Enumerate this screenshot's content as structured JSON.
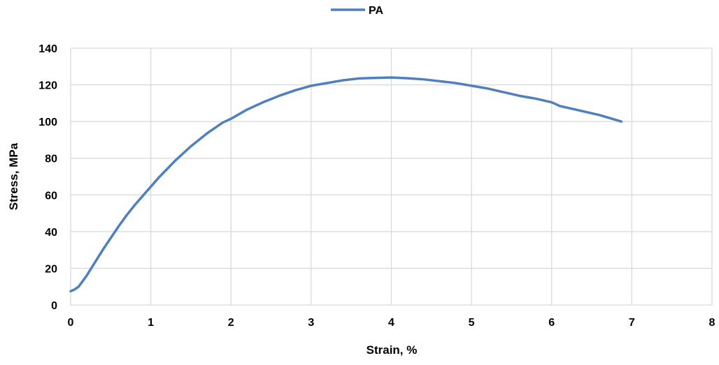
{
  "chart_data": {
    "type": "line",
    "title": "",
    "xlabel": "Strain, %",
    "ylabel": "Stress, MPa",
    "xlim": [
      0,
      8
    ],
    "ylim": [
      0,
      140
    ],
    "xticks": [
      0,
      1,
      2,
      3,
      4,
      5,
      6,
      7,
      8
    ],
    "yticks": [
      0,
      20,
      40,
      60,
      80,
      100,
      120,
      140
    ],
    "grid": true,
    "legend_position": "top-center",
    "series": [
      {
        "name": "PA",
        "color": "#4f7fbf",
        "x": [
          0,
          0.05,
          0.1,
          0.15,
          0.2,
          0.3,
          0.4,
          0.5,
          0.6,
          0.7,
          0.8,
          0.9,
          1.0,
          1.1,
          1.2,
          1.3,
          1.4,
          1.5,
          1.6,
          1.7,
          1.8,
          1.9,
          2.0,
          2.1,
          2.2,
          2.4,
          2.6,
          2.8,
          3.0,
          3.2,
          3.4,
          3.6,
          3.8,
          4.0,
          4.2,
          4.4,
          4.6,
          4.8,
          5.0,
          5.2,
          5.4,
          5.6,
          5.8,
          6.0,
          6.1,
          6.2,
          6.4,
          6.6,
          6.87
        ],
        "y": [
          7.5,
          8.5,
          10,
          13,
          16,
          23,
          30,
          36.5,
          43,
          49,
          54.5,
          59.5,
          64.5,
          69.5,
          74,
          78.5,
          82.5,
          86.5,
          90,
          93.5,
          96.5,
          99.5,
          101.5,
          104,
          106.5,
          110.5,
          114,
          117,
          119.5,
          121,
          122.5,
          123.5,
          123.8,
          124,
          123.6,
          123,
          122,
          121,
          119.5,
          118,
          116,
          114,
          112.5,
          110.5,
          108.5,
          107.5,
          105.5,
          103.5,
          100
        ]
      }
    ]
  }
}
